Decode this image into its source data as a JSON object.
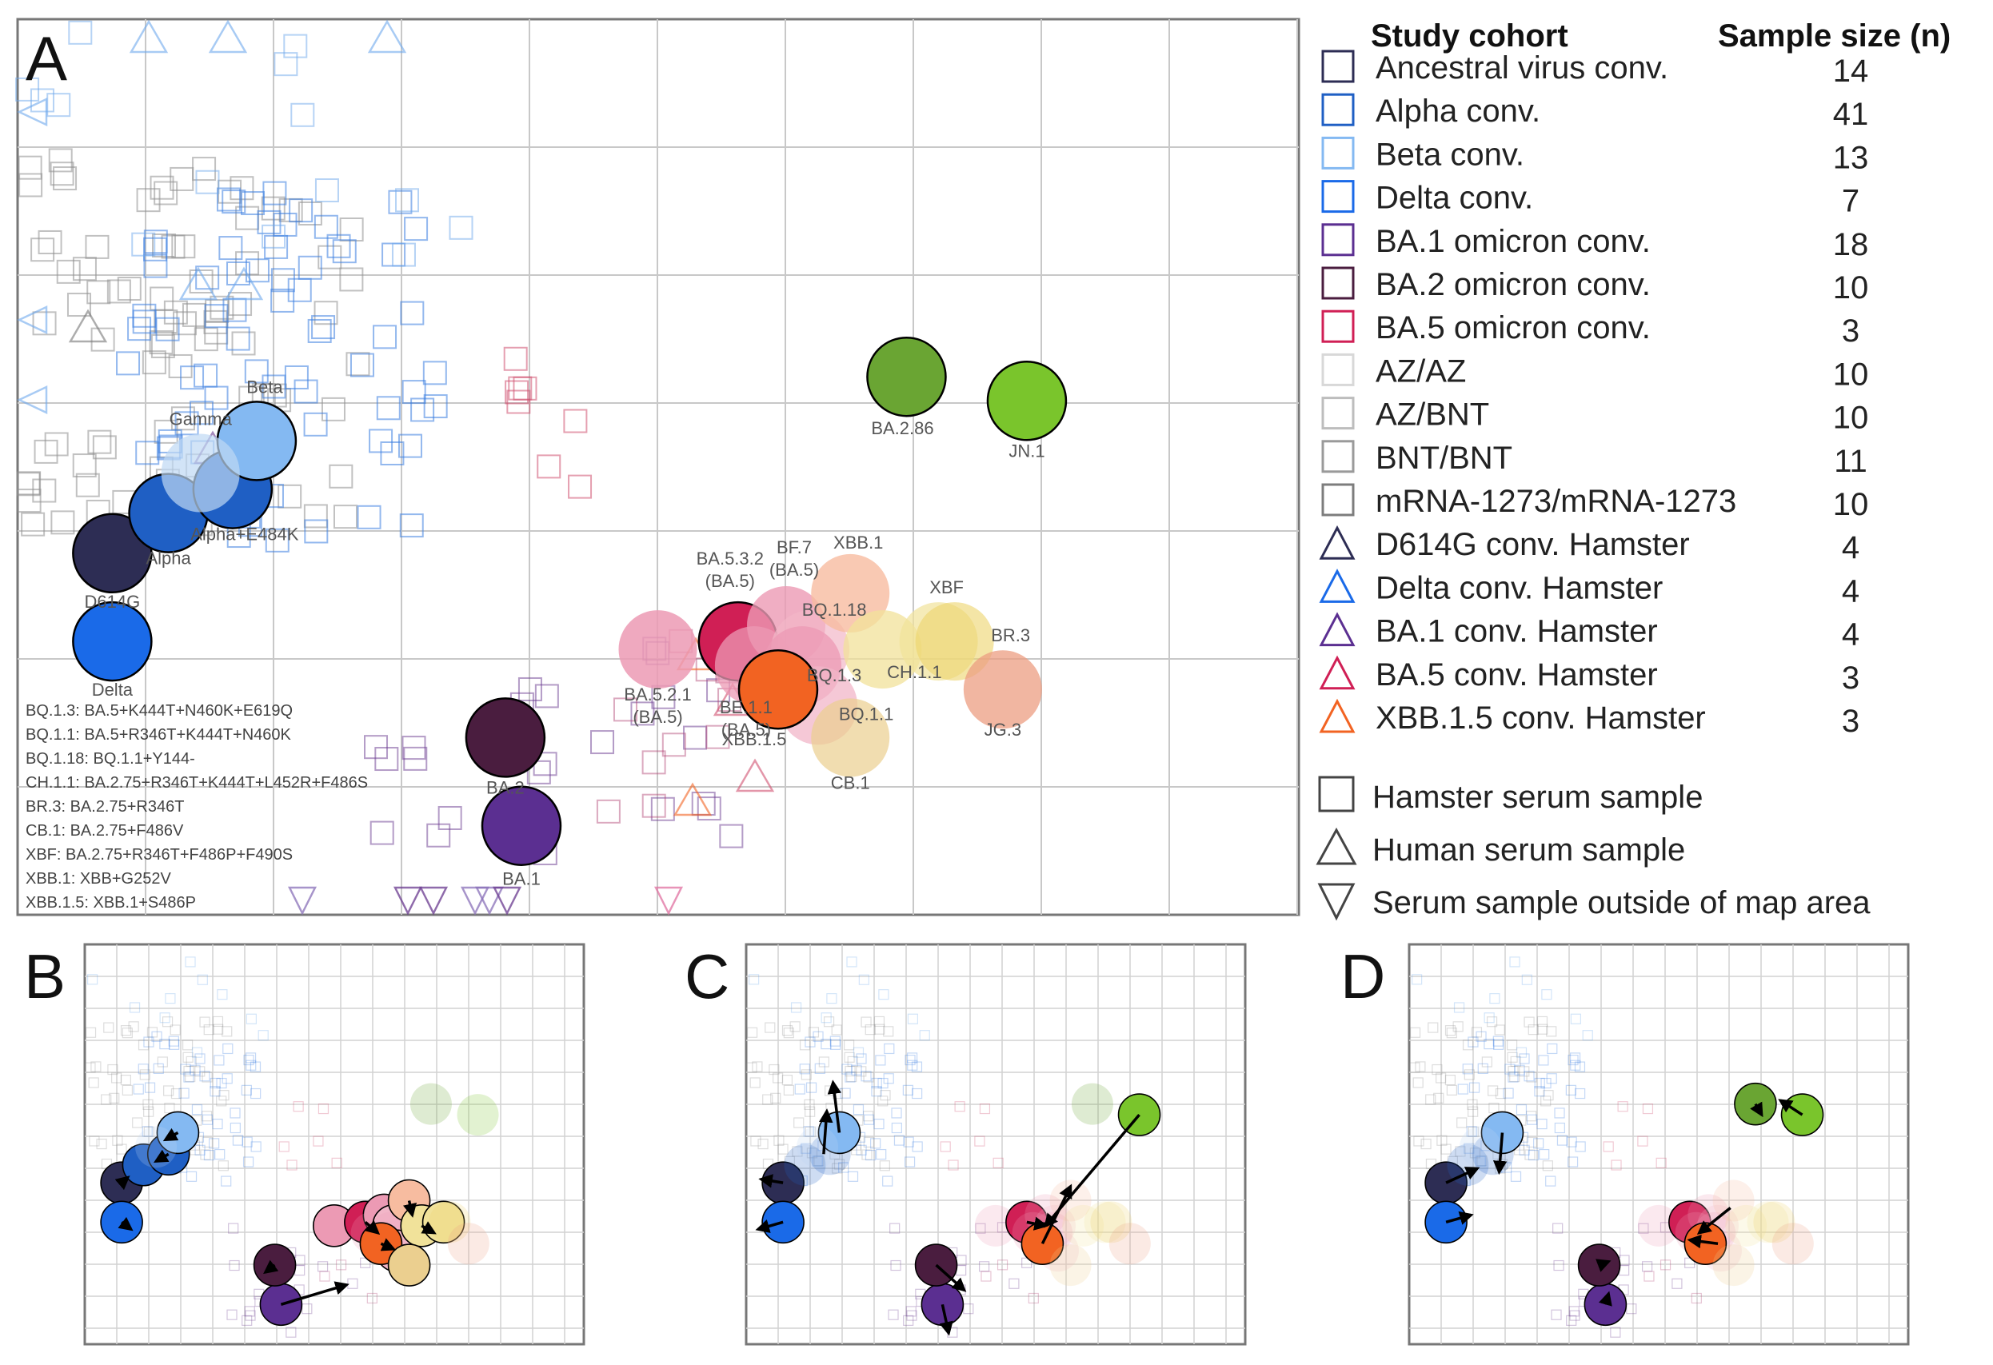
{
  "chart_data": [
    {
      "panel": "A",
      "type": "scatter",
      "antigens": [
        {
          "name": "D614G",
          "x": -7.8,
          "y": 7.4,
          "color": "#2d2d54"
        },
        {
          "name": "Alpha",
          "x": -7.1,
          "y": 7.9,
          "color": "#1f5fc4"
        },
        {
          "name": "Alpha+E484K",
          "x": -6.3,
          "y": 8.2,
          "color": "#1f5fc4"
        },
        {
          "name": "Beta",
          "x": -6.0,
          "y": 8.8,
          "color": "#84b9f2"
        },
        {
          "name": "Gamma",
          "x": -6.7,
          "y": 8.4,
          "color": "#bfd8f3"
        },
        {
          "name": "Delta",
          "x": -7.8,
          "y": 6.3,
          "color": "#1a6ae8"
        },
        {
          "name": "BA.1",
          "x": -2.7,
          "y": 4.0,
          "color": "#5b2f91"
        },
        {
          "name": "BA.2",
          "x": -2.9,
          "y": 5.1,
          "color": "#4a1d3f"
        },
        {
          "name": "BA.5.2.1\n(BA.5)",
          "x": -1.0,
          "y": 6.2,
          "color": "#ec9ab4"
        },
        {
          "name": "BA.5.3.2\n(BA.5)",
          "x": 0.0,
          "y": 6.3,
          "color": "#d01f55"
        },
        {
          "name": "BF.7\n(BA.5)",
          "x": 0.6,
          "y": 6.5,
          "color": "#ec9ab4"
        },
        {
          "name": "BE.1.1\n(BA.5)",
          "x": 0.2,
          "y": 6.0,
          "color": "#ec9ab4"
        },
        {
          "name": "BQ.1.18",
          "x": 0.9,
          "y": 6.2,
          "color": "#f2b6c8"
        },
        {
          "name": "BQ.1.3",
          "x": 0.8,
          "y": 6.0,
          "color": "#ec9ab4"
        },
        {
          "name": "BQ.1.1",
          "x": 1.0,
          "y": 5.5,
          "color": "#f2b6c8"
        },
        {
          "name": "XBB.1.5",
          "x": 0.5,
          "y": 5.7,
          "color": "#f26322"
        },
        {
          "name": "XBB.1",
          "x": 1.4,
          "y": 6.9,
          "color": "#f7bca0"
        },
        {
          "name": "CH.1.1",
          "x": 1.8,
          "y": 6.2,
          "color": "#f1e29a"
        },
        {
          "name": "XBF",
          "x": 2.5,
          "y": 6.3,
          "color": "#f1e29a"
        },
        {
          "name": "BR.3",
          "x": 2.7,
          "y": 6.3,
          "color": "#ecd36a"
        },
        {
          "name": "CB.1",
          "x": 1.4,
          "y": 5.1,
          "color": "#ebcf8f"
        },
        {
          "name": "JG.3",
          "x": 3.3,
          "y": 5.7,
          "color": "#ec9e82"
        },
        {
          "name": "BA.2.86",
          "x": 2.1,
          "y": 9.6,
          "color": "#6aa533"
        },
        {
          "name": "JN.1",
          "x": 3.6,
          "y": 9.3,
          "color": "#7ac52c"
        }
      ],
      "notes": [
        "BQ.1.3: BA.5+K444T+N460K+E619Q",
        "BQ.1.1: BA.5+R346T+K444T+N460K",
        "BQ.1.18: BQ.1.1+Y144-",
        "CH.1.1: BA.2.75+R346T+K444T+L452R+F486S",
        "BR.3: BA.2.75+R346T",
        "CB.1: BA.2.75+F486V",
        "XBF: BA.2.75+R346T+F486P+F490S",
        "XBB.1: XBB+G252V",
        "XBB.1.5: XBB.1+S486P"
      ]
    },
    {
      "panel": "B",
      "type": "scatter",
      "title": ""
    },
    {
      "panel": "C",
      "type": "scatter",
      "title": ""
    },
    {
      "panel": "D",
      "type": "scatter",
      "title": ""
    }
  ],
  "panels": {
    "a": "A",
    "b": "B",
    "c": "C",
    "d": "D"
  },
  "legend": {
    "cohort_header": "Study cohort",
    "n_header": "Sample size (n)",
    "cohorts": [
      {
        "label": "Ancestral virus conv.",
        "n": "14",
        "color": "#2d2d54",
        "shape": "square"
      },
      {
        "label": "Alpha conv.",
        "n": "41",
        "color": "#1f5fc4",
        "shape": "square"
      },
      {
        "label": "Beta conv.",
        "n": "13",
        "color": "#84b9f2",
        "shape": "square"
      },
      {
        "label": "Delta conv.",
        "n": "7",
        "color": "#1a6ae8",
        "shape": "square"
      },
      {
        "label": "BA.1 omicron conv.",
        "n": "18",
        "color": "#5b2f91",
        "shape": "square"
      },
      {
        "label": "BA.2 omicron conv.",
        "n": "10",
        "color": "#4a1d3f",
        "shape": "square"
      },
      {
        "label": "BA.5 omicron conv.",
        "n": "3",
        "color": "#d01f55",
        "shape": "square"
      },
      {
        "label": "AZ/AZ",
        "n": "10",
        "color": "#d8d8d8",
        "shape": "square"
      },
      {
        "label": "AZ/BNT",
        "n": "10",
        "color": "#bdbdbd",
        "shape": "square"
      },
      {
        "label": "BNT/BNT",
        "n": "11",
        "color": "#9a9a9a",
        "shape": "square"
      },
      {
        "label": "mRNA-1273/mRNA-1273",
        "n": "10",
        "color": "#7d7d7d",
        "shape": "square"
      },
      {
        "label": "D614G conv. Hamster",
        "n": "4",
        "color": "#2d2d54",
        "shape": "triangle"
      },
      {
        "label": "Delta conv. Hamster",
        "n": "4",
        "color": "#1a6ae8",
        "shape": "triangle"
      },
      {
        "label": "BA.1 conv. Hamster",
        "n": "4",
        "color": "#5b2f91",
        "shape": "triangle"
      },
      {
        "label": "BA.5 conv. Hamster",
        "n": "3",
        "color": "#d01f55",
        "shape": "triangle"
      },
      {
        "label": "XBB.1.5 conv. Hamster",
        "n": "3",
        "color": "#f26322",
        "shape": "triangle"
      }
    ],
    "shapes": [
      {
        "label": "Hamster serum sample",
        "shape": "square"
      },
      {
        "label": "Human serum sample",
        "shape": "triangle"
      },
      {
        "label": "Serum sample outside of map area",
        "shape": "triangle-down"
      }
    ]
  }
}
